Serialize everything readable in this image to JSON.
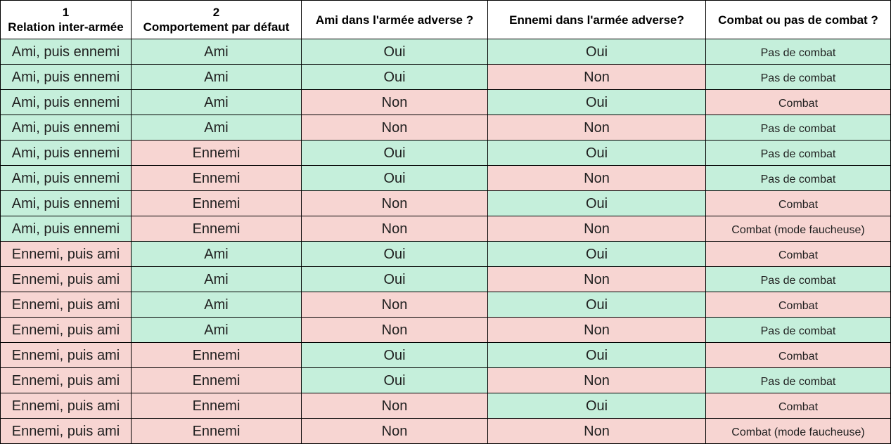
{
  "headers": [
    {
      "num": "1",
      "title": "Relation inter-armée"
    },
    {
      "num": "2",
      "title": "Comportement par défaut"
    },
    {
      "num": "",
      "title": "Ami dans l'armée adverse ?"
    },
    {
      "num": "",
      "title": "Ennemi dans l'armée adverse?"
    },
    {
      "num": "",
      "title": "Combat ou pas de combat ?"
    }
  ],
  "colors": {
    "green": "#c5efdb",
    "red": "#f7d5d2",
    "border": "#000000"
  },
  "rows": [
    [
      {
        "t": "Ami, puis ennemi",
        "c": "green"
      },
      {
        "t": "Ami",
        "c": "green"
      },
      {
        "t": "Oui",
        "c": "green"
      },
      {
        "t": "Oui",
        "c": "green"
      },
      {
        "t": "Pas de combat",
        "c": "green"
      }
    ],
    [
      {
        "t": "Ami, puis ennemi",
        "c": "green"
      },
      {
        "t": "Ami",
        "c": "green"
      },
      {
        "t": "Oui",
        "c": "green"
      },
      {
        "t": "Non",
        "c": "red"
      },
      {
        "t": "Pas de combat",
        "c": "green"
      }
    ],
    [
      {
        "t": "Ami, puis ennemi",
        "c": "green"
      },
      {
        "t": "Ami",
        "c": "green"
      },
      {
        "t": "Non",
        "c": "red"
      },
      {
        "t": "Oui",
        "c": "green"
      },
      {
        "t": "Combat",
        "c": "red"
      }
    ],
    [
      {
        "t": "Ami, puis ennemi",
        "c": "green"
      },
      {
        "t": "Ami",
        "c": "green"
      },
      {
        "t": "Non",
        "c": "red"
      },
      {
        "t": "Non",
        "c": "red"
      },
      {
        "t": "Pas de combat",
        "c": "green"
      }
    ],
    [
      {
        "t": "Ami, puis ennemi",
        "c": "green"
      },
      {
        "t": "Ennemi",
        "c": "red"
      },
      {
        "t": "Oui",
        "c": "green"
      },
      {
        "t": "Oui",
        "c": "green"
      },
      {
        "t": "Pas de combat",
        "c": "green"
      }
    ],
    [
      {
        "t": "Ami, puis ennemi",
        "c": "green"
      },
      {
        "t": "Ennemi",
        "c": "red"
      },
      {
        "t": "Oui",
        "c": "green"
      },
      {
        "t": "Non",
        "c": "red"
      },
      {
        "t": "Pas de combat",
        "c": "green"
      }
    ],
    [
      {
        "t": "Ami, puis ennemi",
        "c": "green"
      },
      {
        "t": "Ennemi",
        "c": "red"
      },
      {
        "t": "Non",
        "c": "red"
      },
      {
        "t": "Oui",
        "c": "green"
      },
      {
        "t": "Combat",
        "c": "red"
      }
    ],
    [
      {
        "t": "Ami, puis ennemi",
        "c": "green"
      },
      {
        "t": "Ennemi",
        "c": "red"
      },
      {
        "t": "Non",
        "c": "red"
      },
      {
        "t": "Non",
        "c": "red"
      },
      {
        "t": "Combat (mode faucheuse)",
        "c": "red"
      }
    ],
    [
      {
        "t": "Ennemi, puis ami",
        "c": "red"
      },
      {
        "t": "Ami",
        "c": "green"
      },
      {
        "t": "Oui",
        "c": "green"
      },
      {
        "t": "Oui",
        "c": "green"
      },
      {
        "t": "Combat",
        "c": "red"
      }
    ],
    [
      {
        "t": "Ennemi, puis ami",
        "c": "red"
      },
      {
        "t": "Ami",
        "c": "green"
      },
      {
        "t": "Oui",
        "c": "green"
      },
      {
        "t": "Non",
        "c": "red"
      },
      {
        "t": "Pas de combat",
        "c": "green"
      }
    ],
    [
      {
        "t": "Ennemi, puis ami",
        "c": "red"
      },
      {
        "t": "Ami",
        "c": "green"
      },
      {
        "t": "Non",
        "c": "red"
      },
      {
        "t": "Oui",
        "c": "green"
      },
      {
        "t": "Combat",
        "c": "red"
      }
    ],
    [
      {
        "t": "Ennemi, puis ami",
        "c": "red"
      },
      {
        "t": "Ami",
        "c": "green"
      },
      {
        "t": "Non",
        "c": "red"
      },
      {
        "t": "Non",
        "c": "red"
      },
      {
        "t": "Pas de combat",
        "c": "green"
      }
    ],
    [
      {
        "t": "Ennemi, puis ami",
        "c": "red"
      },
      {
        "t": "Ennemi",
        "c": "red"
      },
      {
        "t": "Oui",
        "c": "green"
      },
      {
        "t": "Oui",
        "c": "green"
      },
      {
        "t": "Combat",
        "c": "red"
      }
    ],
    [
      {
        "t": "Ennemi, puis ami",
        "c": "red"
      },
      {
        "t": "Ennemi",
        "c": "red"
      },
      {
        "t": "Oui",
        "c": "green"
      },
      {
        "t": "Non",
        "c": "red"
      },
      {
        "t": "Pas de combat",
        "c": "green"
      }
    ],
    [
      {
        "t": "Ennemi, puis ami",
        "c": "red"
      },
      {
        "t": "Ennemi",
        "c": "red"
      },
      {
        "t": "Non",
        "c": "red"
      },
      {
        "t": "Oui",
        "c": "green"
      },
      {
        "t": "Combat",
        "c": "red"
      }
    ],
    [
      {
        "t": "Ennemi, puis ami",
        "c": "red"
      },
      {
        "t": "Ennemi",
        "c": "red"
      },
      {
        "t": "Non",
        "c": "red"
      },
      {
        "t": "Non",
        "c": "red"
      },
      {
        "t": "Combat (mode faucheuse)",
        "c": "red"
      }
    ]
  ]
}
